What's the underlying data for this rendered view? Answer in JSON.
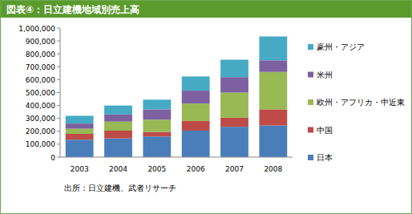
{
  "chart_data": {
    "type": "bar",
    "stacked": true,
    "title": "図表④：日立建機地域別売上高",
    "annotations": [
      "出所：日立建機、武者リサーチ"
    ],
    "categories": [
      "2003",
      "2004",
      "2005",
      "2006",
      "2007",
      "2008"
    ],
    "series": [
      {
        "name": "日本",
        "color": "#4a7ebb",
        "values": [
          135000,
          145000,
          160000,
          205000,
          235000,
          245000
        ]
      },
      {
        "name": "中国",
        "color": "#be4b48",
        "values": [
          45000,
          60000,
          35000,
          75000,
          70000,
          125000
        ]
      },
      {
        "name": "欧州・アフリカ・中近東",
        "color": "#98b954",
        "values": [
          40000,
          70000,
          95000,
          135000,
          195000,
          290000
        ]
      },
      {
        "name": "米州",
        "color": "#7d60a0",
        "values": [
          40000,
          55000,
          80000,
          100000,
          120000,
          90000
        ]
      },
      {
        "name": "豪州・アジア",
        "color": "#46aac5",
        "values": [
          60000,
          70000,
          75000,
          110000,
          135000,
          185000
        ]
      }
    ],
    "ylim": [
      0,
      1000000
    ],
    "yticks": [
      0,
      {
        "value": 100000,
        "label": "100,000"
      },
      {
        "value": 200000,
        "label": "200,000"
      },
      {
        "value": 300000,
        "label": "300,000"
      },
      {
        "value": 400000,
        "label": "400,000"
      },
      {
        "value": 500000,
        "label": "500,000"
      },
      {
        "value": 600000,
        "label": "600,000"
      },
      {
        "value": 700000,
        "label": "700,000"
      },
      {
        "value": 800000,
        "label": "800,000"
      },
      {
        "value": 900000,
        "label": "900,000"
      },
      {
        "value": 1000000,
        "label": "1,000,000"
      }
    ],
    "grid": false,
    "legend": "right"
  }
}
